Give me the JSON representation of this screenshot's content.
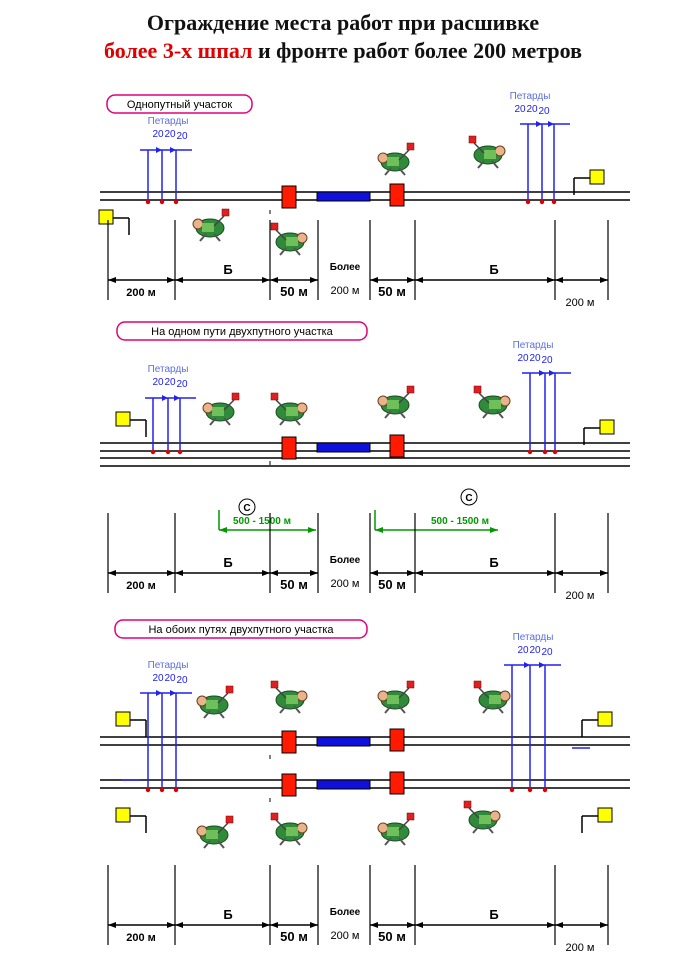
{
  "title": {
    "line1": "Ограждение места работ при расшивке",
    "line2_red": "более 3-х шпал",
    "line2_black": " и фронте работ более 200 метров"
  },
  "labels": {
    "petards": "Петарды",
    "twenty": "20",
    "b": "Б",
    "more": "Более",
    "m200": "200 м",
    "m50": "50 м",
    "range": "500 - 1500 м"
  },
  "sections": [
    {
      "caption": "Однопутный участок"
    },
    {
      "caption": "На одном пути двухпутного участка"
    },
    {
      "caption": "На обоих путях двухпутного участка"
    }
  ],
  "colors": {
    "title_accent": "#e00000",
    "caption_border": "#e0007a",
    "petard": "#2222ee",
    "petard_label": "#5a6ee0",
    "shield": "#ff1a00",
    "work_zone": "#1010dd",
    "signal": "#ffff00",
    "range_line": "#009900"
  }
}
